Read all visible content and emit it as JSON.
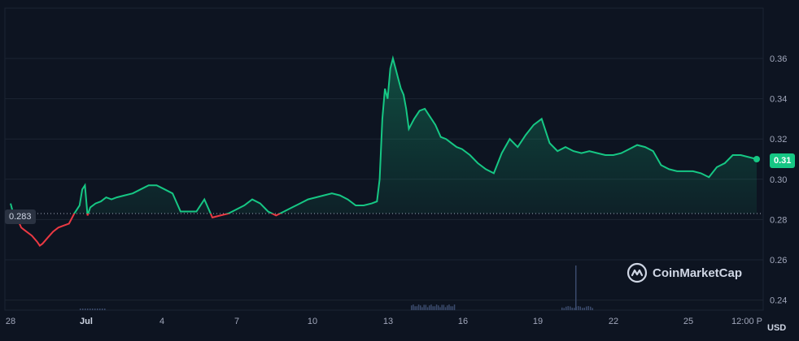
{
  "chart_data": {
    "type": "line",
    "y_axis": {
      "ticks": [
        "0.24",
        "0.26",
        "0.28",
        "0.30",
        "0.32",
        "0.34",
        "0.36"
      ],
      "ylim": [
        0.235,
        0.385
      ]
    },
    "x_axis": {
      "ticks": [
        "28",
        "Jul",
        "4",
        "7",
        "10",
        "13",
        "16",
        "19",
        "22",
        "25",
        "12:00 P"
      ],
      "bold_ticks": [
        "Jul"
      ]
    },
    "reference_value": 0.283,
    "reference_label": "0.283",
    "current_value": 0.31,
    "current_label": "0.31",
    "currency": "USD",
    "colors": {
      "up": "#16c784",
      "down": "#ea3943",
      "background": "#0d1421",
      "grid": "#1c2433"
    },
    "series": [
      {
        "x_days": [
          0,
          0.1,
          0.2,
          0.3,
          0.4,
          0.5,
          0.6,
          0.8,
          1.0,
          1.1,
          1.2,
          1.4,
          1.6,
          1.8,
          2.0,
          2.2,
          2.4,
          2.6,
          2.7,
          2.8,
          2.9,
          3.0,
          3.2,
          3.4,
          3.6,
          3.8,
          4.0,
          4.3,
          4.6,
          4.9,
          5.2,
          5.5,
          5.8,
          6.1,
          6.4,
          6.7,
          7.0,
          7.3,
          7.6,
          7.9,
          8.2,
          8.5,
          8.8,
          9.1,
          9.4,
          9.7,
          10.0,
          10.3,
          10.6,
          10.9,
          11.2,
          11.5,
          11.8,
          12.1,
          12.4,
          12.7,
          13.0,
          13.3,
          13.6,
          13.8,
          13.9,
          14.0,
          14.1,
          14.2,
          14.3,
          14.4,
          14.5,
          14.6,
          14.7,
          14.8,
          14.9,
          15.0,
          15.2,
          15.4,
          15.6,
          15.8,
          16.0,
          16.2,
          16.4,
          16.6,
          16.8,
          17.0,
          17.3,
          17.6,
          17.9,
          18.2,
          18.5,
          18.8,
          19.1,
          19.4,
          19.7,
          20.0,
          20.3,
          20.6,
          20.9,
          21.2,
          21.5,
          21.8,
          22.1,
          22.4,
          22.7,
          23.0,
          23.3,
          23.6,
          23.9,
          24.2,
          24.5,
          24.8,
          25.1,
          25.4,
          25.7,
          26.0,
          26.3,
          26.6,
          26.9,
          27.2,
          27.5,
          27.8,
          28.1
        ],
        "values": [
          0.288,
          0.283,
          0.281,
          0.279,
          0.276,
          0.275,
          0.274,
          0.272,
          0.269,
          0.267,
          0.268,
          0.271,
          0.274,
          0.276,
          0.277,
          0.278,
          0.283,
          0.287,
          0.295,
          0.297,
          0.282,
          0.286,
          0.288,
          0.289,
          0.291,
          0.29,
          0.291,
          0.292,
          0.293,
          0.295,
          0.297,
          0.297,
          0.295,
          0.293,
          0.284,
          0.284,
          0.284,
          0.29,
          0.281,
          0.282,
          0.283,
          0.285,
          0.287,
          0.29,
          0.288,
          0.284,
          0.282,
          0.284,
          0.286,
          0.288,
          0.29,
          0.291,
          0.292,
          0.293,
          0.292,
          0.29,
          0.287,
          0.287,
          0.288,
          0.289,
          0.3,
          0.33,
          0.345,
          0.34,
          0.355,
          0.36,
          0.355,
          0.35,
          0.345,
          0.342,
          0.335,
          0.325,
          0.33,
          0.334,
          0.335,
          0.331,
          0.327,
          0.321,
          0.32,
          0.318,
          0.316,
          0.315,
          0.312,
          0.308,
          0.305,
          0.303,
          0.313,
          0.32,
          0.316,
          0.322,
          0.327,
          0.33,
          0.318,
          0.314,
          0.316,
          0.314,
          0.313,
          0.314,
          0.313,
          0.312,
          0.312,
          0.313,
          0.315,
          0.317,
          0.316,
          0.314,
          0.307,
          0.305,
          0.304,
          0.304,
          0.304,
          0.303,
          0.301,
          0.306,
          0.308,
          0.312,
          0.312,
          0.311,
          0.31
        ]
      }
    ]
  },
  "branding": {
    "name": "CoinMarketCap"
  }
}
